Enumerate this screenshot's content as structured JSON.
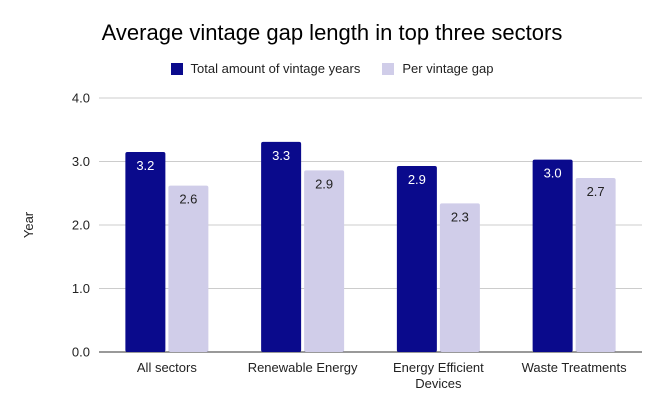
{
  "chart_data": {
    "type": "bar",
    "title": "Average vintage gap length in top three sectors",
    "xlabel": "",
    "ylabel": "Year",
    "ylim": [
      0,
      4
    ],
    "yticks": [
      "0.0",
      "1.0",
      "2.0",
      "3.0",
      "4.0"
    ],
    "grid": true,
    "legend_position": "top",
    "categories": [
      [
        "All sectors"
      ],
      [
        "Renewable Energy"
      ],
      [
        "Energy Efficient",
        "Devices"
      ],
      [
        "Waste Treatments"
      ]
    ],
    "series": [
      {
        "name": "Total amount of vintage years",
        "color": "#0a0a8c",
        "label_color": "#ffffff",
        "values": [
          3.15,
          3.31,
          2.93,
          3.03
        ],
        "labels": [
          "3.2",
          "3.3",
          "2.9",
          "3.0"
        ]
      },
      {
        "name": "Per vintage gap",
        "color": "#d0cde9",
        "label_color": "#222222",
        "values": [
          2.62,
          2.86,
          2.34,
          2.74
        ],
        "labels": [
          "2.6",
          "2.9",
          "2.3",
          "2.7"
        ]
      }
    ]
  }
}
